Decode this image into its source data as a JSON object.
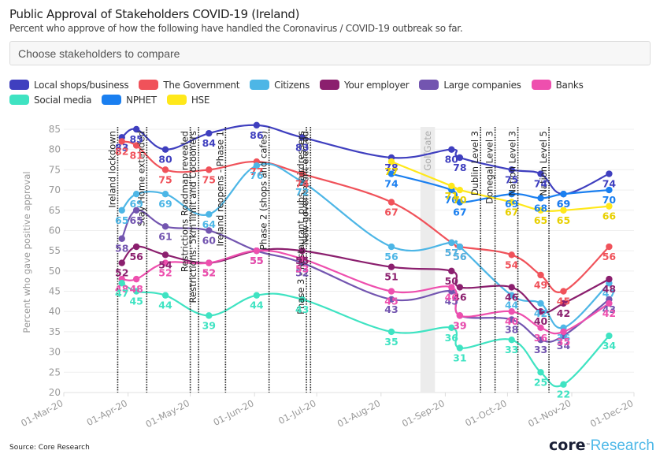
{
  "header": {
    "title": "Public Approval of Stakeholders COVID-19 (Ireland)",
    "subtitle": "Percent who approve of how the following have handled the Coronavirus / COVID-19 outbreak so far."
  },
  "selector": {
    "placeholder": "Choose stakeholders to compare"
  },
  "footer": {
    "source": "Source: Core Research",
    "logo_core": "core",
    "logo_tm": "™",
    "logo_research": "Research"
  },
  "chart_data": {
    "type": "line",
    "title": "Public Approval of Stakeholders COVID-19 (Ireland)",
    "subtitle": "Percent who approve of how the following have handled the Coronavirus / COVID-19 outbreak so far.",
    "xlabel": "",
    "ylabel": "Percent who gave positive approval",
    "ylim": [
      20,
      85
    ],
    "yticks": [
      20,
      25,
      30,
      35,
      40,
      45,
      50,
      55,
      60,
      65,
      70,
      75,
      80,
      85
    ],
    "xlim": [
      "2020-03-01",
      "2020-12-01"
    ],
    "xticks": [
      {
        "date": "2020-03-01",
        "label": "01-Mar-20"
      },
      {
        "date": "2020-04-01",
        "label": "01-Apr-20"
      },
      {
        "date": "2020-05-01",
        "label": "01-May-20"
      },
      {
        "date": "2020-06-01",
        "label": "01-Jun-20"
      },
      {
        "date": "2020-07-01",
        "label": "01-Jul-20"
      },
      {
        "date": "2020-08-01",
        "label": "01-Aug-20"
      },
      {
        "date": "2020-09-01",
        "label": "01-Sep-20"
      },
      {
        "date": "2020-10-01",
        "label": "01-Oct-20"
      },
      {
        "date": "2020-11-01",
        "label": "01-Nov-20"
      },
      {
        "date": "2020-12-01",
        "label": "01-Dec-20"
      }
    ],
    "grid": true,
    "legend": "top",
    "x": [
      "2020-03-29",
      "2020-04-05",
      "2020-04-19",
      "2020-05-10",
      "2020-06-02",
      "2020-06-24",
      "2020-08-06",
      "2020-09-04",
      "2020-09-08",
      "2020-10-03",
      "2020-10-17",
      "2020-10-28",
      "2020-11-19"
    ],
    "series": [
      {
        "name": "Local shops/business",
        "color": "#3f3fbf",
        "values": [
          83,
          85,
          80,
          84,
          86,
          83,
          78,
          80,
          78,
          75,
          74,
          69,
          74
        ]
      },
      {
        "name": "The Government",
        "color": "#f0525a",
        "values": [
          82,
          81,
          75,
          75,
          77,
          74,
          67,
          57,
          56,
          54,
          49,
          45,
          56
        ]
      },
      {
        "name": "Citizens",
        "color": "#4db6e6",
        "values": [
          65,
          69,
          69,
          64,
          76,
          72,
          56,
          57,
          56,
          44,
          42,
          36,
          47
        ]
      },
      {
        "name": "Your employer",
        "color": "#8b1f6e",
        "values": [
          52,
          56,
          54,
          52,
          55,
          55,
          51,
          50,
          46,
          46,
          40,
          42,
          48
        ]
      },
      {
        "name": "Large companies",
        "color": "#7355b0",
        "values": [
          58,
          65,
          61,
          60,
          55,
          52,
          43,
          45,
          39,
          38,
          33,
          34,
          43
        ]
      },
      {
        "name": "Banks",
        "color": "#ee4fae",
        "values": [
          48,
          48,
          52,
          52,
          55,
          53,
          45,
          46,
          39,
          40,
          36,
          35,
          42
        ]
      },
      {
        "name": "Social media",
        "color": "#3fe3c2",
        "values": [
          47,
          45,
          44,
          39,
          44,
          43,
          35,
          36,
          31,
          33,
          25,
          22,
          34
        ]
      },
      {
        "name": "NPHET",
        "color": "#1a7ff0",
        "values": [
          null,
          null,
          null,
          null,
          null,
          null,
          74,
          70,
          67,
          69,
          68,
          69,
          70
        ]
      },
      {
        "name": "HSE",
        "color": "#ffe81a",
        "values": [
          null,
          null,
          null,
          null,
          null,
          null,
          77,
          71,
          70,
          67,
          65,
          65,
          66
        ]
      }
    ],
    "annotations": [
      {
        "date": "2020-03-27",
        "label": "Ireland lockdown",
        "type": "line"
      },
      {
        "date": "2020-04-10",
        "label": "Stay Home extended",
        "type": "line"
      },
      {
        "date": "2020-05-01",
        "label": "Restrictions Roadmap revealed",
        "type": "line"
      },
      {
        "date": "2020-05-05",
        "label": "Restrictions: 5km limit and Cocooners",
        "type": "line"
      },
      {
        "date": "2020-05-18",
        "label": "Ireland reopens - Phase 1",
        "type": "line"
      },
      {
        "date": "2020-06-08",
        "label": "Phase 2 (shops and cafes)",
        "type": "line"
      },
      {
        "date": "2020-06-26",
        "label": "Phase 3 - Restaurant, pubs, hairdressers",
        "type": "line"
      },
      {
        "date": "2020-06-28",
        "label": "New government elected",
        "type": "line"
      },
      {
        "date": "2020-08-20",
        "date_end": "2020-08-27",
        "label": "GolfGate",
        "type": "band"
      },
      {
        "date": "2020-09-18",
        "label": "Dublin Level 3",
        "type": "line"
      },
      {
        "date": "2020-09-25",
        "label": "Donegal Level 3",
        "type": "line"
      },
      {
        "date": "2020-10-06",
        "label": "Nation Level 3",
        "type": "line"
      },
      {
        "date": "2020-10-21",
        "label": "Nation Level 5",
        "type": "line"
      }
    ]
  }
}
